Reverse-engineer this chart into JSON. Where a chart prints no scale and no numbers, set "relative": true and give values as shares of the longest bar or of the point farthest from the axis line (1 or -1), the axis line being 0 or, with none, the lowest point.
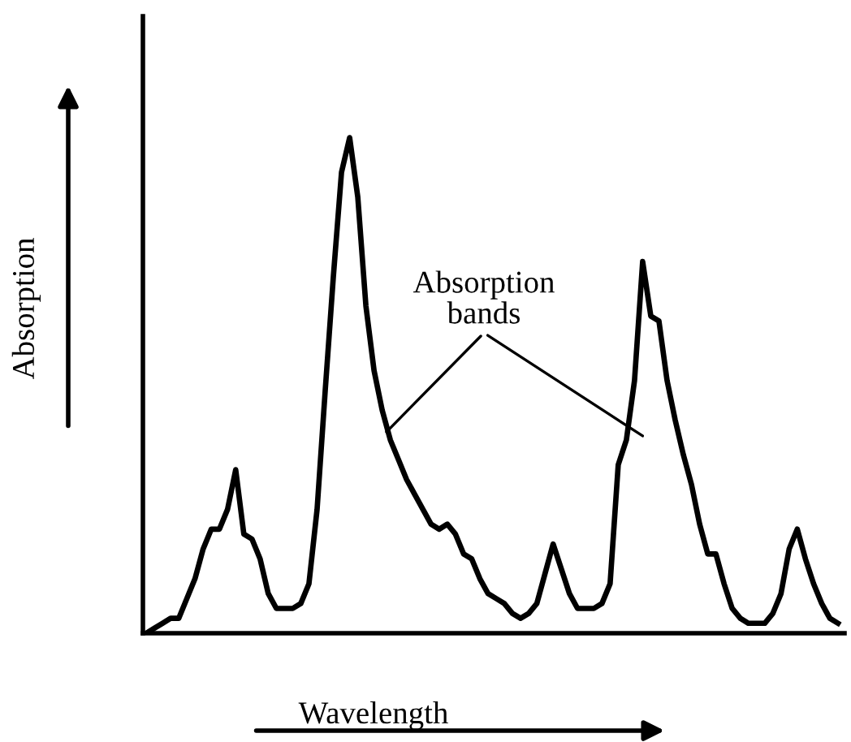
{
  "chart_data": {
    "type": "line",
    "relative": true,
    "xlabel": "Wavelength",
    "ylabel": "Absorption",
    "color": "#000000",
    "annotations": [
      "Absorption\nbands"
    ],
    "categories": [
      null,
      null,
      null,
      null,
      null,
      null,
      null,
      null,
      null,
      null,
      null,
      null,
      null,
      null,
      null,
      null,
      null,
      null,
      null,
      null,
      null,
      null,
      null,
      null,
      null,
      null,
      null,
      null,
      null,
      null,
      null,
      null,
      null,
      null,
      null,
      null,
      null,
      null,
      null,
      null,
      null,
      null,
      null,
      null,
      null,
      null,
      null,
      null,
      null,
      null,
      null,
      null,
      null,
      null,
      null,
      null,
      null,
      null,
      null,
      null,
      null,
      null,
      null,
      null,
      null,
      null,
      null,
      null,
      null,
      null,
      null,
      null,
      null,
      null,
      null,
      null,
      null,
      null,
      null,
      null,
      null,
      null,
      null,
      null,
      null,
      null
    ],
    "values": [
      0.0,
      0.01,
      0.02,
      0.03,
      0.03,
      0.07,
      0.11,
      0.17,
      0.21,
      0.21,
      0.25,
      0.33,
      0.2,
      0.19,
      0.15,
      0.08,
      0.05,
      0.05,
      0.05,
      0.06,
      0.1,
      0.25,
      0.49,
      0.72,
      0.93,
      1.0,
      0.88,
      0.66,
      0.53,
      0.45,
      0.39,
      0.35,
      0.31,
      0.28,
      0.25,
      0.22,
      0.21,
      0.22,
      0.2,
      0.16,
      0.15,
      0.11,
      0.08,
      0.07,
      0.06,
      0.04,
      0.03,
      0.04,
      0.06,
      0.12,
      0.18,
      0.13,
      0.08,
      0.05,
      0.05,
      0.05,
      0.06,
      0.1,
      0.34,
      0.39,
      0.51,
      0.75,
      0.64,
      0.63,
      0.51,
      0.43,
      0.36,
      0.3,
      0.22,
      0.16,
      0.16,
      0.1,
      0.05,
      0.03,
      0.02,
      0.02,
      0.02,
      0.04,
      0.08,
      0.17,
      0.21,
      0.15,
      0.1,
      0.06,
      0.03,
      0.02
    ]
  }
}
